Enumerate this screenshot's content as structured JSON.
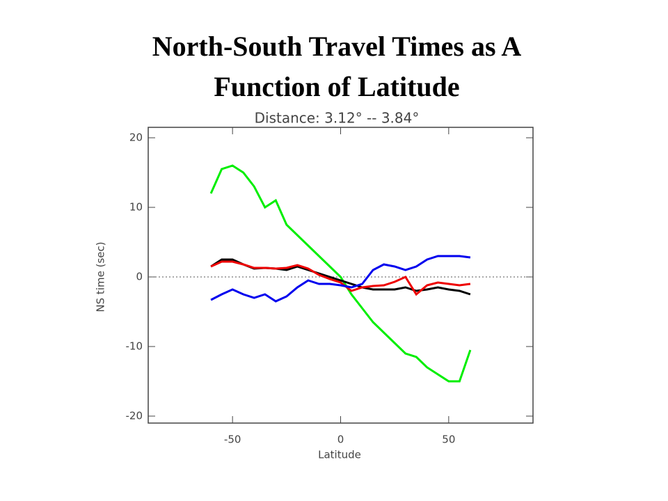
{
  "slide_title": [
    "North-South Travel Times as A",
    "Function of Latitude"
  ],
  "chart_data": {
    "type": "line",
    "title": "Distance: 3.12° -- 3.84°",
    "x_label": "Latitude",
    "y_label": "NS time (sec)",
    "x": [
      -60,
      -55,
      -50,
      -45,
      -40,
      -35,
      -30,
      -25,
      -20,
      -15,
      -10,
      -5,
      0,
      5,
      10,
      15,
      20,
      25,
      30,
      35,
      40,
      45,
      50,
      55,
      60
    ],
    "series": [
      {
        "color": "#00ee00",
        "values": [
          12,
          15.5,
          16,
          15,
          13,
          10,
          11,
          7.5,
          6,
          4.5,
          3,
          1.5,
          0,
          -2.5,
          -4.5,
          -6.5,
          -8,
          -9.5,
          -11,
          -11.5,
          -13,
          -14,
          -15,
          -15,
          -10.5
        ]
      },
      {
        "color": "#000000",
        "values": [
          1.5,
          2.5,
          2.5,
          1.8,
          1.2,
          1.3,
          1.2,
          1,
          1.5,
          1,
          0.5,
          0,
          -0.5,
          -1,
          -1.5,
          -1.8,
          -1.8,
          -1.8,
          -1.5,
          -2,
          -1.8,
          -1.5,
          -1.8,
          -2,
          -2.5
        ]
      },
      {
        "color": "#ee0000",
        "values": [
          1.5,
          2.2,
          2.2,
          1.8,
          1.3,
          1.3,
          1.2,
          1.3,
          1.7,
          1.2,
          0.3,
          -0.3,
          -0.8,
          -2,
          -1.5,
          -1.3,
          -1.2,
          -0.7,
          0,
          -2.5,
          -1.2,
          -0.8,
          -1,
          -1.2,
          -1
        ]
      },
      {
        "color": "#0000ee",
        "values": [
          -3.3,
          -2.5,
          -1.8,
          -2.5,
          -3,
          -2.5,
          -3.5,
          -2.8,
          -1.5,
          -0.5,
          -1,
          -1,
          -1.2,
          -1.5,
          -1,
          1,
          1.8,
          1.5,
          1,
          1.5,
          2.5,
          3,
          3,
          3,
          2.8
        ]
      }
    ],
    "xlim": [
      -89,
      89
    ],
    "xticks": [
      -50,
      0,
      50
    ],
    "ylim": [
      -21,
      21.5
    ],
    "yticks": [
      -20,
      -10,
      0,
      10,
      20
    ],
    "hline": 0
  }
}
